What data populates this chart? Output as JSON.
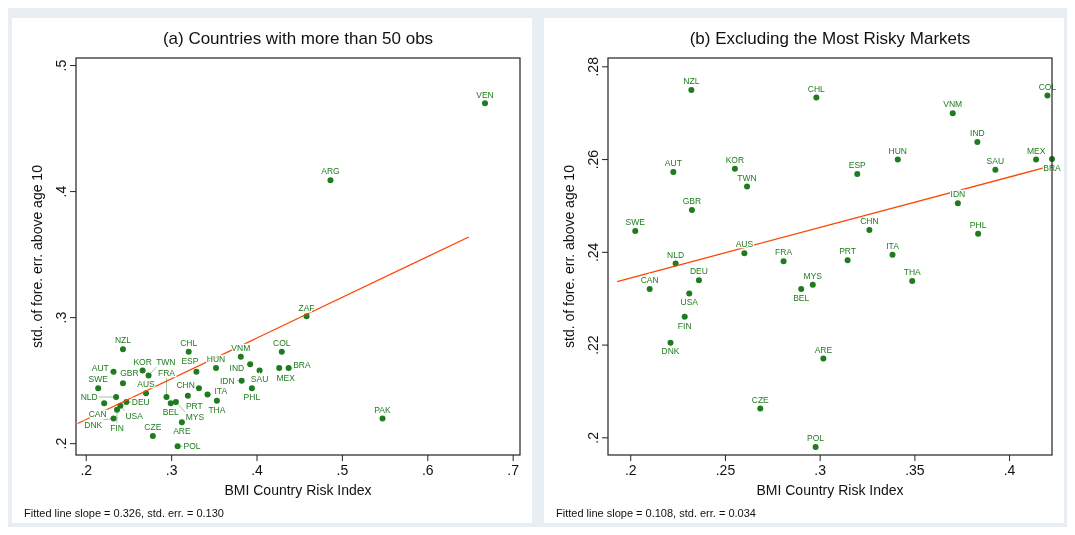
{
  "chart_data": [
    {
      "type": "scatter",
      "title": "(a) Countries with more than 50 obs",
      "xlabel": "BMI Country Risk Index",
      "ylabel": "std. of fore. err. above age 10",
      "annotations": [
        "Fitted line slope = 0.326, std. err. = 0.130"
      ],
      "xlim": [
        0.188,
        0.708
      ],
      "ylim": [
        0.191,
        0.506
      ],
      "xticks": [
        {
          "value": 0.2,
          "label": ".2"
        },
        {
          "value": 0.3,
          "label": ".3"
        },
        {
          "value": 0.4,
          "label": ".4"
        },
        {
          "value": 0.5,
          "label": ".5"
        },
        {
          "value": 0.6,
          "label": ".6"
        },
        {
          "value": 0.7,
          "label": ".7"
        }
      ],
      "yticks": [
        {
          "value": 0.2,
          "label": ".2"
        },
        {
          "value": 0.3,
          "label": ".3"
        },
        {
          "value": 0.4,
          "label": ".4"
        },
        {
          "value": 0.5,
          "label": ".5"
        }
      ],
      "grid": false,
      "series": [
        {
          "type": "scatter",
          "marker": "circle",
          "color": "#1e7b1e",
          "x": [
            0.667,
            0.486,
            0.458,
            0.547,
            0.243,
            0.32,
            0.429,
            0.381,
            0.392,
            0.403,
            0.426,
            0.437,
            0.352,
            0.329,
            0.382,
            0.394,
            0.332,
            0.342,
            0.319,
            0.353,
            0.232,
            0.266,
            0.273,
            0.243,
            0.214,
            0.27,
            0.294,
            0.305,
            0.299,
            0.235,
            0.221,
            0.247,
            0.24,
            0.236,
            0.232,
            0.312,
            0.278,
            0.307
          ],
          "values": [
            0.47,
            0.409,
            0.301,
            0.22,
            0.275,
            0.273,
            0.273,
            0.269,
            0.263,
            0.258,
            0.26,
            0.26,
            0.26,
            0.257,
            0.25,
            0.244,
            0.244,
            0.239,
            0.238,
            0.234,
            0.257,
            0.258,
            0.254,
            0.248,
            0.244,
            0.24,
            0.237,
            0.233,
            0.232,
            0.237,
            0.232,
            0.233,
            0.23,
            0.227,
            0.22,
            0.217,
            0.206,
            0.198
          ],
          "value_labels": [
            "VEN",
            "ARG",
            "ZAF",
            "PAK",
            "NZL",
            "CHL",
            "COL",
            "VNM",
            "IND",
            "SAU",
            "MEX",
            "BRA",
            "HUN",
            "ESP",
            "IDN",
            "PHL",
            "CHN",
            "ITA",
            "PRT",
            "THA",
            "AUT",
            "KOR",
            "TWN",
            "GBR",
            "SWE",
            "AUS",
            "FRA",
            "MYS",
            "BEL",
            "NLD",
            "CAN",
            "DEU",
            "USA",
            "FIN",
            "DNK",
            "ARE",
            "CZE",
            "POL"
          ]
        },
        {
          "type": "line",
          "color": "#ff4500",
          "x": [
            0.19,
            0.648
          ],
          "values": [
            0.216,
            0.364
          ]
        }
      ]
    },
    {
      "type": "scatter",
      "title": "(b) Excluding the Most Risky Markets",
      "xlabel": "BMI Country Risk Index",
      "ylabel": "std. of fore. err. above age 10",
      "annotations": [
        "Fitted line slope = 0.108, std. err. = 0.034"
      ],
      "xlim": [
        0.188,
        0.4224
      ],
      "ylim": [
        0.1963,
        0.2819
      ],
      "xticks": [
        {
          "value": 0.2,
          "label": ".2"
        },
        {
          "value": 0.25,
          "label": ".25"
        },
        {
          "value": 0.3,
          "label": ".3"
        },
        {
          "value": 0.35,
          "label": ".35"
        },
        {
          "value": 0.4,
          "label": ".4"
        }
      ],
      "yticks": [
        {
          "value": 0.2,
          "label": ".2"
        },
        {
          "value": 0.22,
          "label": ".22"
        },
        {
          "value": 0.24,
          "label": ".24"
        },
        {
          "value": 0.26,
          "label": ".26"
        },
        {
          "value": 0.28,
          "label": ".28"
        }
      ],
      "grid": false,
      "series": [
        {
          "type": "scatter",
          "marker": "circle",
          "color": "#1e7b1e",
          "x": [
            0.232,
            0.298,
            0.42,
            0.37,
            0.383,
            0.341,
            0.414,
            0.4224,
            0.3925,
            0.255,
            0.2225,
            0.3196,
            0.2614,
            0.2323,
            0.3727,
            0.2024,
            0.326,
            0.3834,
            0.26,
            0.3382,
            0.2807,
            0.3145,
            0.2237,
            0.236,
            0.3486,
            0.2961,
            0.29,
            0.21,
            0.2309,
            0.2285,
            0.221,
            0.3017,
            0.2684,
            0.2976
          ],
          "values": [
            0.275,
            0.2734,
            0.2738,
            0.27,
            0.2638,
            0.26,
            0.26,
            0.2601,
            0.2578,
            0.258,
            0.2573,
            0.2569,
            0.2542,
            0.2491,
            0.2506,
            0.2446,
            0.2448,
            0.244,
            0.2398,
            0.2395,
            0.2381,
            0.2383,
            0.2376,
            0.234,
            0.2338,
            0.233,
            0.2321,
            0.2321,
            0.2311,
            0.2261,
            0.2205,
            0.2171,
            0.2063,
            0.198
          ],
          "value_labels": [
            "NZL",
            "CHL",
            "COL",
            "VNM",
            "IND",
            "HUN",
            "MEX",
            "BRA",
            "SAU",
            "KOR",
            "AUT",
            "ESP",
            "TWN",
            "GBR",
            "IDN",
            "SWE",
            "CHN",
            "PHL",
            "AUS",
            "ITA",
            "FRA",
            "PRT",
            "NLD",
            "DEU",
            "THA",
            "MYS",
            "BEL",
            "CAN",
            "USA",
            "FIN",
            "DNK",
            "ARE",
            "CZE",
            "POL"
          ]
        },
        {
          "type": "line",
          "color": "#ff4500",
          "x": [
            0.1928,
            0.418
          ],
          "values": [
            0.2337,
            0.2582
          ]
        }
      ]
    }
  ]
}
